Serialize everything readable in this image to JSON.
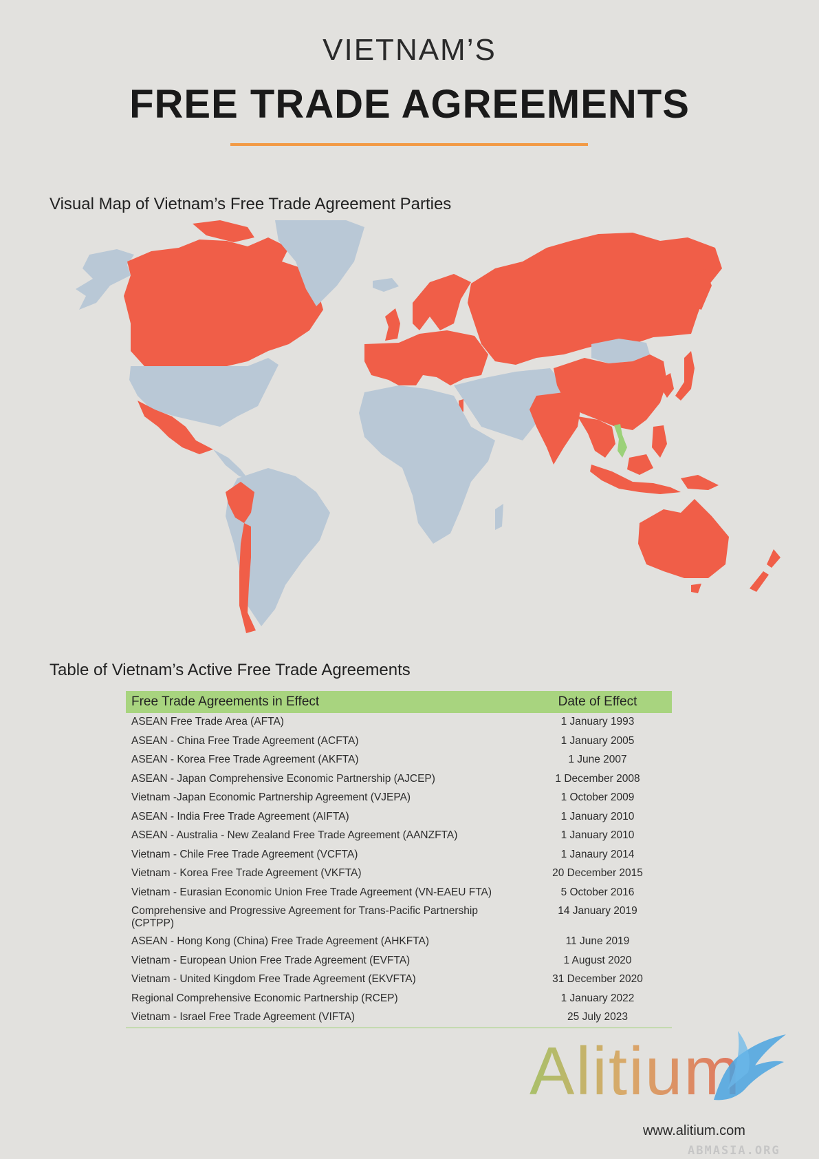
{
  "header": {
    "top_line": "VIETNAM’S",
    "main_line": "FREE TRADE AGREEMENTS"
  },
  "map": {
    "title": "Visual Map of Vietnam’s Free Trade Agreement Parties",
    "colors": {
      "land": "#b9c8d6",
      "fta_party": "#f05e48",
      "vietnam": "#9bd178"
    }
  },
  "table": {
    "title": "Table of Vietnam’s Active Free Trade Agreements",
    "headers": [
      "Free Trade Agreements in Effect",
      "Date of Effect"
    ],
    "rows": [
      [
        "ASEAN Free Trade Area (AFTA)",
        "1 January 1993"
      ],
      [
        "ASEAN - China Free Trade Agreement (ACFTA)",
        "1 January 2005"
      ],
      [
        "ASEAN - Korea Free Trade Agreement (AKFTA)",
        "1 June 2007"
      ],
      [
        "ASEAN - Japan Comprehensive Economic Partnership (AJCEP)",
        "1 December 2008"
      ],
      [
        "Vietnam -Japan Economic Partnership Agreement (VJEPA)",
        "1 October 2009"
      ],
      [
        "ASEAN - India Free Trade Agreement (AIFTA)",
        "1 January 2010"
      ],
      [
        "ASEAN - Australia - New Zealand Free Trade Agreement (AANZFTA)",
        "1 January 2010"
      ],
      [
        "Vietnam - Chile Free Trade Agreement (VCFTA)",
        "1 Janaury 2014"
      ],
      [
        "Vietnam - Korea Free Trade Agreement (VKFTA)",
        "20 December 2015"
      ],
      [
        "Vietnam - Eurasian Economic Union Free Trade Agreement (VN-EAEU FTA)",
        "5 October 2016"
      ],
      [
        "Comprehensive and Progressive Agreement for Trans-Pacific Partnership (CPTPP)",
        "14 January 2019"
      ],
      [
        "ASEAN - Hong Kong (China) Free Trade Agreement (AHKFTA)",
        "11 June 2019"
      ],
      [
        "Vietnam - European Union Free Trade Agreement (EVFTA)",
        "1 August 2020"
      ],
      [
        "Vietnam - United Kingdom Free Trade Agreement (EKVFTA)",
        "31 December 2020"
      ],
      [
        "Regional Comprehensive Economic Partnership (RCEP)",
        "1 January 2022"
      ],
      [
        "Vietnam - Israel Free Trade Agreement (VIFTA)",
        "25 July 2023"
      ]
    ]
  },
  "footer": {
    "logo_text": "Alitium",
    "url": "www.alitium.com",
    "watermark": "ABMASIA.ORG",
    "logo_colors": [
      "#a9c06a",
      "#d9a96a",
      "#e0735e",
      "#4aa3e0"
    ]
  }
}
